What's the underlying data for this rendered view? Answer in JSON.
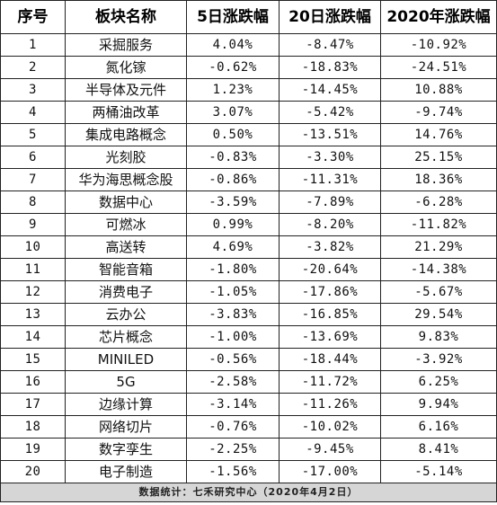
{
  "headers": [
    "序号",
    "板块名称",
    "5日涨跌幅",
    "20日涨跌幅",
    "2020年涨跌幅"
  ],
  "rows": [
    {
      "no": "1",
      "name": "采掘服务",
      "d5": "4.04%",
      "d20": "-8.47%",
      "y2020": "-10.92%"
    },
    {
      "no": "2",
      "name": "氮化镓",
      "d5": "-0.62%",
      "d20": "-18.83%",
      "y2020": "-24.51%"
    },
    {
      "no": "3",
      "name": "半导体及元件",
      "d5": "1.23%",
      "d20": "-14.45%",
      "y2020": "10.88%"
    },
    {
      "no": "4",
      "name": "两桶油改革",
      "d5": "3.07%",
      "d20": "-5.42%",
      "y2020": "-9.74%"
    },
    {
      "no": "5",
      "name": "集成电路概念",
      "d5": "0.50%",
      "d20": "-13.51%",
      "y2020": "14.76%"
    },
    {
      "no": "6",
      "name": "光刻胶",
      "d5": "-0.83%",
      "d20": "-3.30%",
      "y2020": "25.15%"
    },
    {
      "no": "7",
      "name": "华为海思概念股",
      "d5": "-0.86%",
      "d20": "-11.31%",
      "y2020": "18.36%"
    },
    {
      "no": "8",
      "name": "数据中心",
      "d5": "-3.59%",
      "d20": "-7.89%",
      "y2020": "-6.28%"
    },
    {
      "no": "9",
      "name": "可燃冰",
      "d5": "0.99%",
      "d20": "-8.20%",
      "y2020": "-11.82%"
    },
    {
      "no": "10",
      "name": "高送转",
      "d5": "4.69%",
      "d20": "-3.82%",
      "y2020": "21.29%"
    },
    {
      "no": "11",
      "name": "智能音箱",
      "d5": "-1.80%",
      "d20": "-20.64%",
      "y2020": "-14.38%"
    },
    {
      "no": "12",
      "name": "消费电子",
      "d5": "-1.05%",
      "d20": "-17.86%",
      "y2020": "-5.67%"
    },
    {
      "no": "13",
      "name": "云办公",
      "d5": "-3.83%",
      "d20": "-16.85%",
      "y2020": "29.54%"
    },
    {
      "no": "14",
      "name": "芯片概念",
      "d5": "-1.00%",
      "d20": "-13.69%",
      "y2020": "9.83%"
    },
    {
      "no": "15",
      "name": "MINILED",
      "d5": "-0.56%",
      "d20": "-18.44%",
      "y2020": "-3.92%"
    },
    {
      "no": "16",
      "name": "5G",
      "d5": "-2.58%",
      "d20": "-11.72%",
      "y2020": "6.25%"
    },
    {
      "no": "17",
      "name": "边缘计算",
      "d5": "-3.14%",
      "d20": "-11.26%",
      "y2020": "9.94%"
    },
    {
      "no": "18",
      "name": "网络切片",
      "d5": "-0.76%",
      "d20": "-10.02%",
      "y2020": "6.16%"
    },
    {
      "no": "19",
      "name": "数字孪生",
      "d5": "-2.25%",
      "d20": "-9.45%",
      "y2020": "8.41%"
    },
    {
      "no": "20",
      "name": "电子制造",
      "d5": "-1.56%",
      "d20": "-17.00%",
      "y2020": "-5.14%"
    }
  ],
  "footer": "数据统计：七禾研究中心（2020年4月2日）"
}
